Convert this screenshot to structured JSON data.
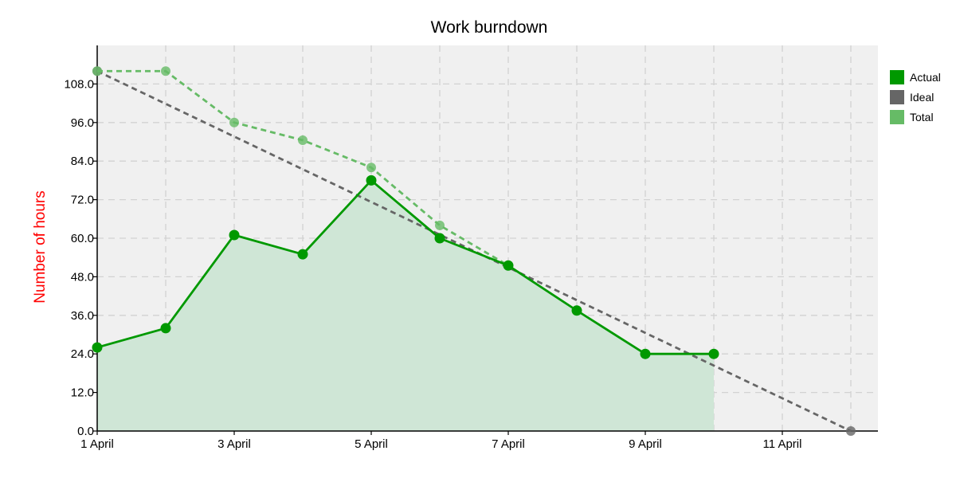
{
  "chart_data": {
    "type": "line",
    "title": "Work burndown",
    "ylabel": "Number of hours",
    "xlabel": "",
    "x_day_labels": [
      "1 April",
      "2 April",
      "3 April",
      "4 April",
      "5 April",
      "6 April",
      "7 April",
      "8 April",
      "9 April",
      "10 April",
      "11 April",
      "12 April"
    ],
    "x_tick_labels": [
      "1 April",
      "3 April",
      "5 April",
      "7 April",
      "9 April",
      "11 April"
    ],
    "y_ticks": [
      "0.0",
      "12.0",
      "24.0",
      "36.0",
      "48.0",
      "60.0",
      "72.0",
      "84.0",
      "96.0",
      "108.0"
    ],
    "ylim": [
      0,
      120
    ],
    "xlim": [
      "1 April",
      "12 April"
    ],
    "grid": true,
    "legend_position": "top-right",
    "series": [
      {
        "name": "Actual",
        "color": "#009900",
        "style": "solid-filled",
        "x": [
          "1 April",
          "2 April",
          "3 April",
          "4 April",
          "5 April",
          "6 April",
          "7 April",
          "8 April",
          "9 April",
          "10 April"
        ],
        "values": [
          26,
          32,
          61,
          55,
          78,
          60,
          51.5,
          37.5,
          24,
          24
        ]
      },
      {
        "name": "Ideal",
        "color": "#666666",
        "style": "dashed",
        "x": [
          "1 April",
          "12 April"
        ],
        "values": [
          112,
          0
        ]
      },
      {
        "name": "Total",
        "color": "#66bb66",
        "style": "dashed",
        "x": [
          "1 April",
          "2 April",
          "3 April",
          "4 April",
          "5 April",
          "6 April",
          "7 April"
        ],
        "values": [
          112,
          112,
          96,
          90.5,
          82,
          64,
          51.5
        ]
      }
    ]
  }
}
